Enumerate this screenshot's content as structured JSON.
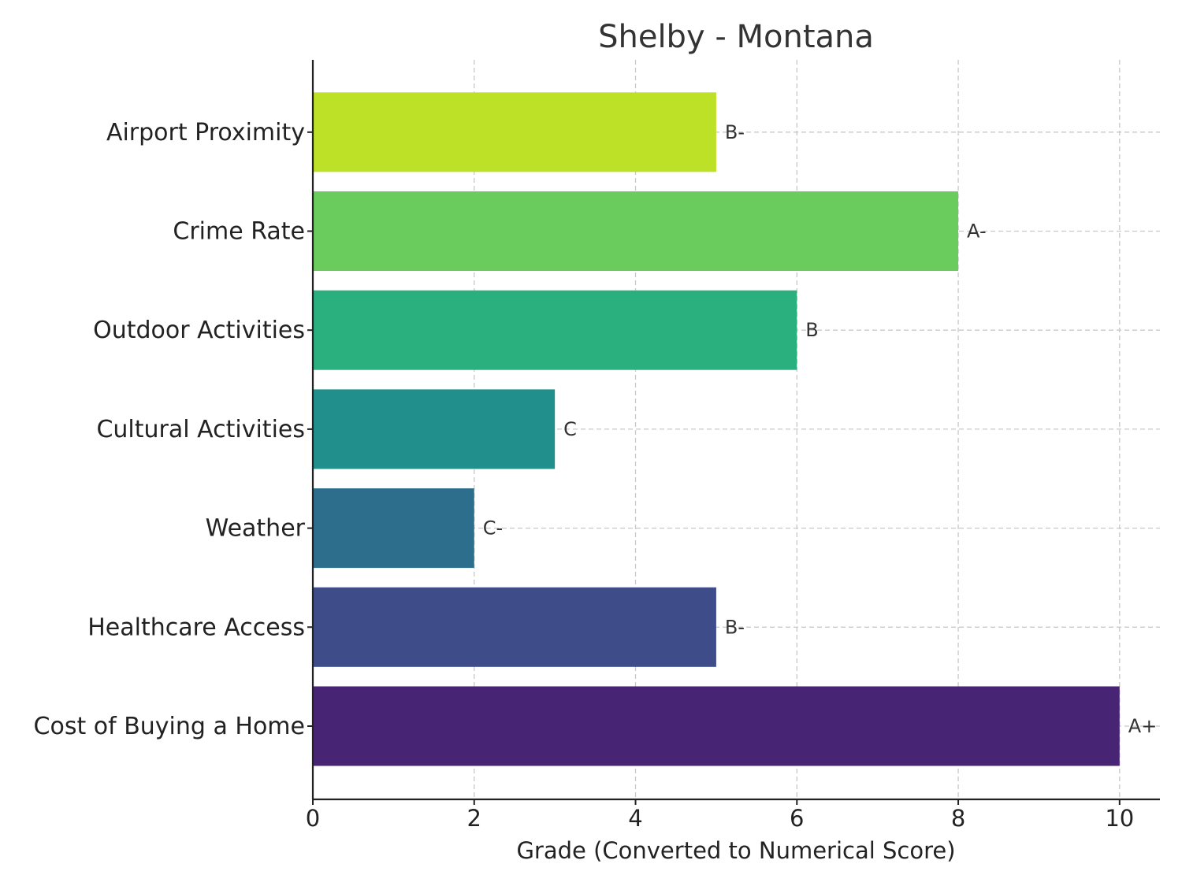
{
  "chart_data": {
    "type": "bar",
    "orientation": "horizontal",
    "title": "Shelby - Montana",
    "xlabel": "Grade (Converted to Numerical Score)",
    "ylabel": "",
    "xlim": [
      0,
      10.5
    ],
    "xticks": [
      0,
      2,
      4,
      6,
      8,
      10
    ],
    "grid": true,
    "categories": [
      "Cost of Buying a Home",
      "Healthcare Access",
      "Weather",
      "Cultural Activities",
      "Outdoor Activities",
      "Crime Rate",
      "Airport Proximity"
    ],
    "values": [
      10,
      5,
      2,
      3,
      6,
      8,
      5
    ],
    "grades": [
      "A+",
      "B-",
      "C-",
      "C",
      "B",
      "A-",
      "B-"
    ],
    "colors": [
      "#482475",
      "#3e4c8a",
      "#2c6e8c",
      "#21908d",
      "#2aaf7e",
      "#6acc5d",
      "#bde126"
    ]
  }
}
